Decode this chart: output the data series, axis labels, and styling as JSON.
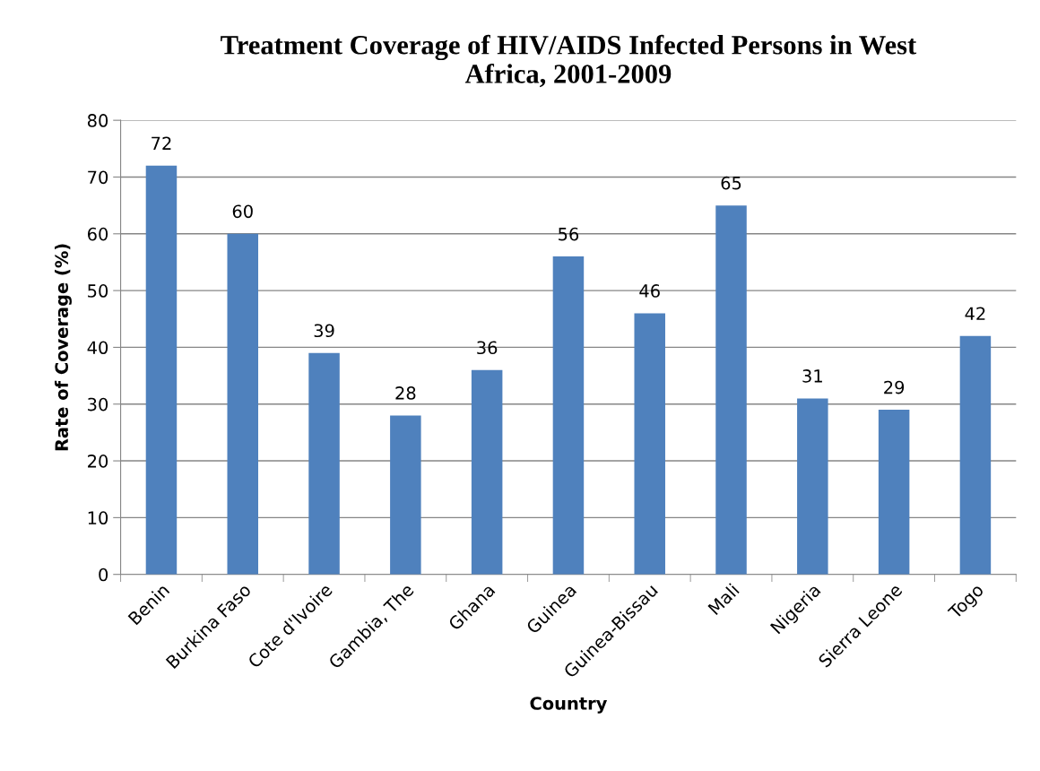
{
  "chart_data": {
    "type": "bar",
    "title": "Treatment Coverage of HIV/AIDS Infected Persons in West\nAfrica, 2001-2009",
    "xlabel": "Country",
    "ylabel": "Rate of Coverage (%)",
    "categories": [
      "Benin",
      "Burkina Faso",
      "Cote d'Ivoire",
      "Gambia, The",
      "Ghana",
      "Guinea",
      "Guinea-Bissau",
      "Mali",
      "Nigeria",
      "Sierra Leone",
      "Togo"
    ],
    "values": [
      72,
      60,
      39,
      28,
      36,
      56,
      46,
      65,
      31,
      29,
      42
    ],
    "color": "#4f81bd",
    "ylim": [
      0,
      80
    ],
    "yticks": [
      0,
      10,
      20,
      30,
      40,
      50,
      60,
      70,
      80
    ],
    "grid": "y",
    "data_labels": true
  }
}
